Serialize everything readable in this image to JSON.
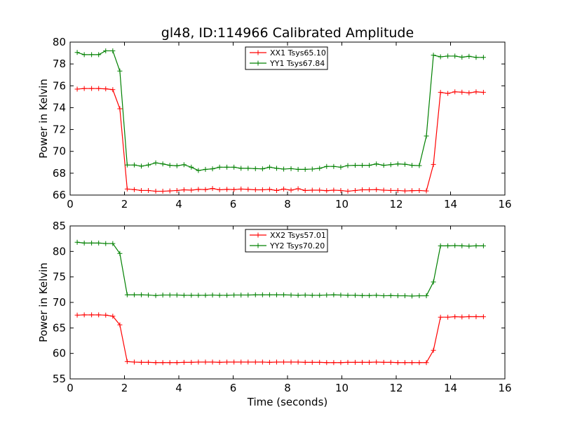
{
  "chart_data": [
    {
      "type": "line",
      "title": "gl48, ID:114966 Calibrated Amplitude",
      "xlabel": "",
      "ylabel": "Power in Kelvin",
      "xlim": [
        0,
        16
      ],
      "ylim": [
        66,
        80
      ],
      "xticks": [
        0,
        2,
        4,
        6,
        8,
        10,
        12,
        14,
        16
      ],
      "yticks": [
        66,
        68,
        70,
        72,
        74,
        76,
        78,
        80
      ],
      "grid": false,
      "legend_position": "top-center",
      "x": [
        0.26,
        0.52,
        0.79,
        1.05,
        1.31,
        1.57,
        1.83,
        2.1,
        2.36,
        2.62,
        2.88,
        3.15,
        3.41,
        3.67,
        3.93,
        4.19,
        4.46,
        4.72,
        4.98,
        5.24,
        5.5,
        5.77,
        6.03,
        6.29,
        6.55,
        6.82,
        7.08,
        7.34,
        7.6,
        7.86,
        8.13,
        8.39,
        8.65,
        8.91,
        9.18,
        9.44,
        9.7,
        9.96,
        10.22,
        10.49,
        10.75,
        11.01,
        11.27,
        11.54,
        11.8,
        12.06,
        12.32,
        12.58,
        12.85,
        13.11,
        13.37,
        13.63,
        13.9,
        14.16,
        14.42,
        14.68,
        14.94,
        15.21
      ],
      "series": [
        {
          "name": "XX1 Tsys65.10",
          "color": "#ff0000",
          "values": [
            75.7,
            75.75,
            75.75,
            75.75,
            75.72,
            75.65,
            73.9,
            66.55,
            66.5,
            66.42,
            66.42,
            66.35,
            66.35,
            66.38,
            66.42,
            66.48,
            66.45,
            66.52,
            66.5,
            66.6,
            66.48,
            66.52,
            66.5,
            66.55,
            66.52,
            66.48,
            66.48,
            66.52,
            66.42,
            66.55,
            66.45,
            66.58,
            66.42,
            66.45,
            66.45,
            66.4,
            66.45,
            66.42,
            66.35,
            66.42,
            66.48,
            66.48,
            66.5,
            66.45,
            66.42,
            66.42,
            66.38,
            66.4,
            66.42,
            66.38,
            68.8,
            75.4,
            75.3,
            75.45,
            75.42,
            75.35,
            75.45,
            75.4
          ]
        },
        {
          "name": "YY1 Tsys67.84",
          "color": "#008000",
          "values": [
            79.05,
            78.85,
            78.85,
            78.85,
            79.2,
            79.2,
            77.35,
            68.75,
            68.75,
            68.65,
            68.75,
            68.95,
            68.85,
            68.72,
            68.68,
            68.78,
            68.55,
            68.25,
            68.35,
            68.4,
            68.55,
            68.55,
            68.55,
            68.45,
            68.45,
            68.42,
            68.4,
            68.55,
            68.45,
            68.38,
            68.42,
            68.35,
            68.35,
            68.38,
            68.45,
            68.62,
            68.62,
            68.55,
            68.7,
            68.72,
            68.72,
            68.72,
            68.85,
            68.72,
            68.78,
            68.85,
            68.82,
            68.72,
            68.7,
            71.4,
            78.8,
            78.65,
            78.72,
            78.72,
            78.62,
            78.7,
            78.6,
            78.6
          ]
        }
      ]
    },
    {
      "type": "line",
      "title": "",
      "xlabel": "Time (seconds)",
      "ylabel": "Power in Kelvin",
      "xlim": [
        0,
        16
      ],
      "ylim": [
        55,
        85
      ],
      "xticks": [
        0,
        2,
        4,
        6,
        8,
        10,
        12,
        14,
        16
      ],
      "yticks": [
        55,
        60,
        65,
        70,
        75,
        80,
        85
      ],
      "grid": false,
      "legend_position": "top-center",
      "x": [
        0.26,
        0.52,
        0.79,
        1.05,
        1.31,
        1.57,
        1.83,
        2.1,
        2.36,
        2.62,
        2.88,
        3.15,
        3.41,
        3.67,
        3.93,
        4.19,
        4.46,
        4.72,
        4.98,
        5.24,
        5.5,
        5.77,
        6.03,
        6.29,
        6.55,
        6.82,
        7.08,
        7.34,
        7.6,
        7.86,
        8.13,
        8.39,
        8.65,
        8.91,
        9.18,
        9.44,
        9.7,
        9.96,
        10.22,
        10.49,
        10.75,
        11.01,
        11.27,
        11.54,
        11.8,
        12.06,
        12.32,
        12.58,
        12.85,
        13.11,
        13.37,
        13.63,
        13.9,
        14.16,
        14.42,
        14.68,
        14.94,
        15.21
      ],
      "series": [
        {
          "name": "XX2 Tsys57.01",
          "color": "#ff0000",
          "values": [
            67.5,
            67.55,
            67.55,
            67.55,
            67.5,
            67.3,
            65.6,
            58.4,
            58.3,
            58.25,
            58.25,
            58.2,
            58.2,
            58.2,
            58.2,
            58.25,
            58.25,
            58.3,
            58.3,
            58.3,
            58.25,
            58.3,
            58.3,
            58.3,
            58.3,
            58.3,
            58.3,
            58.25,
            58.3,
            58.3,
            58.3,
            58.3,
            58.25,
            58.25,
            58.25,
            58.2,
            58.2,
            58.2,
            58.25,
            58.25,
            58.25,
            58.25,
            58.3,
            58.25,
            58.25,
            58.2,
            58.2,
            58.2,
            58.2,
            58.2,
            60.6,
            67.1,
            67.1,
            67.2,
            67.15,
            67.2,
            67.2,
            67.2
          ]
        },
        {
          "name": "YY2 Tsys70.20",
          "color": "#008000",
          "values": [
            81.8,
            81.65,
            81.65,
            81.65,
            81.55,
            81.55,
            79.6,
            71.5,
            71.5,
            71.5,
            71.45,
            71.35,
            71.45,
            71.45,
            71.45,
            71.4,
            71.4,
            71.4,
            71.4,
            71.45,
            71.4,
            71.4,
            71.45,
            71.45,
            71.45,
            71.5,
            71.5,
            71.5,
            71.5,
            71.5,
            71.45,
            71.4,
            71.45,
            71.4,
            71.4,
            71.45,
            71.5,
            71.45,
            71.4,
            71.4,
            71.35,
            71.35,
            71.4,
            71.3,
            71.35,
            71.3,
            71.3,
            71.25,
            71.3,
            71.3,
            74.0,
            81.1,
            81.1,
            81.15,
            81.1,
            81.05,
            81.1,
            81.1
          ]
        }
      ]
    }
  ]
}
